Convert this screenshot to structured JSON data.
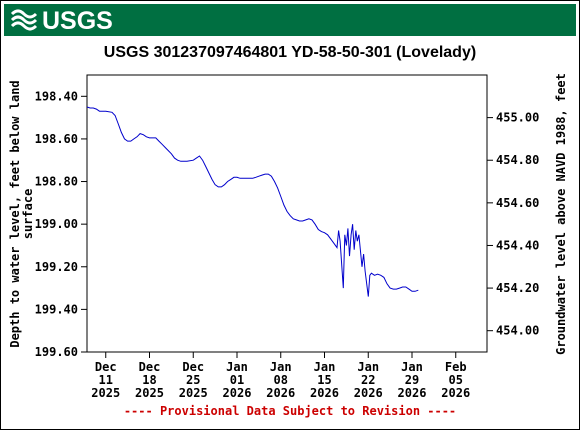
{
  "header": {
    "agency": "USGS",
    "brand_color": "#006f41"
  },
  "footnote": "---- Provisional Data Subject to Revision ----",
  "chart_data": {
    "type": "line",
    "title": "USGS 301237097464801 YD-58-50-301 (Lovelady)",
    "ylabel_left": [
      "Depth to water level, feet below land",
      "surface"
    ],
    "ylabel_right": "Groundwater level above NAVD 1988, feet",
    "left_axis": {
      "ylim": [
        198.3,
        199.6
      ],
      "inverted": true,
      "ticks": [
        198.4,
        198.6,
        198.8,
        199.0,
        199.2,
        199.4,
        199.6
      ],
      "tick_labels": [
        "198.40",
        "198.60",
        "198.80",
        "199.00",
        "199.20",
        "199.40",
        "199.60"
      ]
    },
    "right_axis": {
      "ticks": [
        455.0,
        454.8,
        454.6,
        454.4,
        454.2,
        454.0
      ],
      "tick_labels": [
        "455.00",
        "454.80",
        "454.60",
        "454.40",
        "454.20",
        "454.00"
      ]
    },
    "x_axis": {
      "xlim": [
        "2025-12-08",
        "2026-02-10"
      ],
      "ticks": [
        "2025-12-11",
        "2025-12-18",
        "2025-12-25",
        "2026-01-01",
        "2026-01-08",
        "2026-01-15",
        "2026-01-22",
        "2026-01-29",
        "2026-02-05"
      ],
      "tick_labels": [
        [
          "Dec",
          "11",
          "2025"
        ],
        [
          "Dec",
          "18",
          "2025"
        ],
        [
          "Dec",
          "25",
          "2025"
        ],
        [
          "Jan",
          "01",
          "2026"
        ],
        [
          "Jan",
          "08",
          "2026"
        ],
        [
          "Jan",
          "15",
          "2026"
        ],
        [
          "Jan",
          "22",
          "2026"
        ],
        [
          "Jan",
          "29",
          "2026"
        ],
        [
          "Feb",
          "05",
          "2026"
        ]
      ]
    },
    "grid": false,
    "series": [
      {
        "color": "#0000cc",
        "points": [
          [
            "2025-12-08T00:00",
            198.45
          ],
          [
            "2025-12-08T12:00",
            198.455
          ],
          [
            "2025-12-09T00:00",
            198.455
          ],
          [
            "2025-12-09T12:00",
            198.46
          ],
          [
            "2025-12-10T00:00",
            198.47
          ],
          [
            "2025-12-11T00:00",
            198.47
          ],
          [
            "2025-12-12T00:00",
            198.475
          ],
          [
            "2025-12-12T12:00",
            198.49
          ],
          [
            "2025-12-13T00:00",
            198.53
          ],
          [
            "2025-12-13T12:00",
            198.57
          ],
          [
            "2025-12-14T00:00",
            198.6
          ],
          [
            "2025-12-14T12:00",
            198.61
          ],
          [
            "2025-12-15T00:00",
            198.61
          ],
          [
            "2025-12-15T12:00",
            198.6
          ],
          [
            "2025-12-16T00:00",
            198.59
          ],
          [
            "2025-12-16T12:00",
            198.575
          ],
          [
            "2025-12-17T00:00",
            198.58
          ],
          [
            "2025-12-17T12:00",
            198.59
          ],
          [
            "2025-12-18T00:00",
            198.595
          ],
          [
            "2025-12-19T00:00",
            198.595
          ],
          [
            "2025-12-19T12:00",
            198.61
          ],
          [
            "2025-12-20T00:00",
            198.625
          ],
          [
            "2025-12-20T12:00",
            198.64
          ],
          [
            "2025-12-21T00:00",
            198.655
          ],
          [
            "2025-12-21T12:00",
            198.67
          ],
          [
            "2025-12-22T00:00",
            198.69
          ],
          [
            "2025-12-22T12:00",
            198.7
          ],
          [
            "2025-12-23T00:00",
            198.705
          ],
          [
            "2025-12-24T00:00",
            198.705
          ],
          [
            "2025-12-25T00:00",
            198.7
          ],
          [
            "2025-12-25T12:00",
            198.69
          ],
          [
            "2025-12-26T00:00",
            198.68
          ],
          [
            "2025-12-26T12:00",
            198.7
          ],
          [
            "2025-12-27T00:00",
            198.73
          ],
          [
            "2025-12-27T12:00",
            198.76
          ],
          [
            "2025-12-28T00:00",
            198.79
          ],
          [
            "2025-12-28T12:00",
            198.815
          ],
          [
            "2025-12-29T00:00",
            198.825
          ],
          [
            "2025-12-29T12:00",
            198.825
          ],
          [
            "2025-12-30T00:00",
            198.815
          ],
          [
            "2025-12-30T12:00",
            198.8
          ],
          [
            "2025-12-31T00:00",
            198.79
          ],
          [
            "2025-12-31T12:00",
            198.78
          ],
          [
            "2026-01-01T00:00",
            198.78
          ],
          [
            "2026-01-01T12:00",
            198.785
          ],
          [
            "2026-01-02T12:00",
            198.785
          ],
          [
            "2026-01-03T12:00",
            198.785
          ],
          [
            "2026-01-04T00:00",
            198.78
          ],
          [
            "2026-01-04T12:00",
            198.775
          ],
          [
            "2026-01-05T00:00",
            198.77
          ],
          [
            "2026-01-05T12:00",
            198.765
          ],
          [
            "2026-01-06T00:00",
            198.765
          ],
          [
            "2026-01-06T12:00",
            198.775
          ],
          [
            "2026-01-07T00:00",
            198.8
          ],
          [
            "2026-01-07T12:00",
            198.83
          ],
          [
            "2026-01-08T00:00",
            198.87
          ],
          [
            "2026-01-08T12:00",
            198.91
          ],
          [
            "2026-01-09T00:00",
            198.94
          ],
          [
            "2026-01-09T12:00",
            198.96
          ],
          [
            "2026-01-10T00:00",
            198.975
          ],
          [
            "2026-01-10T12:00",
            198.98
          ],
          [
            "2026-01-11T00:00",
            198.985
          ],
          [
            "2026-01-11T12:00",
            198.985
          ],
          [
            "2026-01-12T00:00",
            198.98
          ],
          [
            "2026-01-12T12:00",
            198.975
          ],
          [
            "2026-01-13T00:00",
            198.98
          ],
          [
            "2026-01-13T12:00",
            199.0
          ],
          [
            "2026-01-14T00:00",
            199.025
          ],
          [
            "2026-01-14T12:00",
            199.035
          ],
          [
            "2026-01-15T00:00",
            199.04
          ],
          [
            "2026-01-15T12:00",
            199.05
          ],
          [
            "2026-01-16T00:00",
            199.07
          ],
          [
            "2026-01-16T12:00",
            199.09
          ],
          [
            "2026-01-17T00:00",
            199.11
          ],
          [
            "2026-01-17T06:00",
            199.03
          ],
          [
            "2026-01-17T12:00",
            199.08
          ],
          [
            "2026-01-18T00:00",
            199.3
          ],
          [
            "2026-01-18T03:00",
            199.18
          ],
          [
            "2026-01-18T06:00",
            199.05
          ],
          [
            "2026-01-18T12:00",
            199.1
          ],
          [
            "2026-01-18T18:00",
            199.02
          ],
          [
            "2026-01-19T00:00",
            199.15
          ],
          [
            "2026-01-19T06:00",
            199.05
          ],
          [
            "2026-01-19T12:00",
            199.0
          ],
          [
            "2026-01-19T18:00",
            199.12
          ],
          [
            "2026-01-20T00:00",
            199.03
          ],
          [
            "2026-01-20T06:00",
            199.08
          ],
          [
            "2026-01-20T12:00",
            199.05
          ],
          [
            "2026-01-21T00:00",
            199.2
          ],
          [
            "2026-01-21T06:00",
            199.14
          ],
          [
            "2026-01-21T12:00",
            199.22
          ],
          [
            "2026-01-22T00:00",
            199.34
          ],
          [
            "2026-01-22T06:00",
            199.24
          ],
          [
            "2026-01-22T12:00",
            199.23
          ],
          [
            "2026-01-23T00:00",
            199.24
          ],
          [
            "2026-01-23T12:00",
            199.235
          ],
          [
            "2026-01-24T00:00",
            199.24
          ],
          [
            "2026-01-24T12:00",
            199.25
          ],
          [
            "2026-01-25T00:00",
            199.28
          ],
          [
            "2026-01-25T12:00",
            199.3
          ],
          [
            "2026-01-26T00:00",
            199.305
          ],
          [
            "2026-01-26T12:00",
            199.305
          ],
          [
            "2026-01-27T00:00",
            199.3
          ],
          [
            "2026-01-27T12:00",
            199.295
          ],
          [
            "2026-01-28T00:00",
            199.295
          ],
          [
            "2026-01-28T12:00",
            199.305
          ],
          [
            "2026-01-29T00:00",
            199.315
          ],
          [
            "2026-01-29T12:00",
            199.315
          ],
          [
            "2026-01-30T00:00",
            199.31
          ]
        ]
      }
    ]
  }
}
